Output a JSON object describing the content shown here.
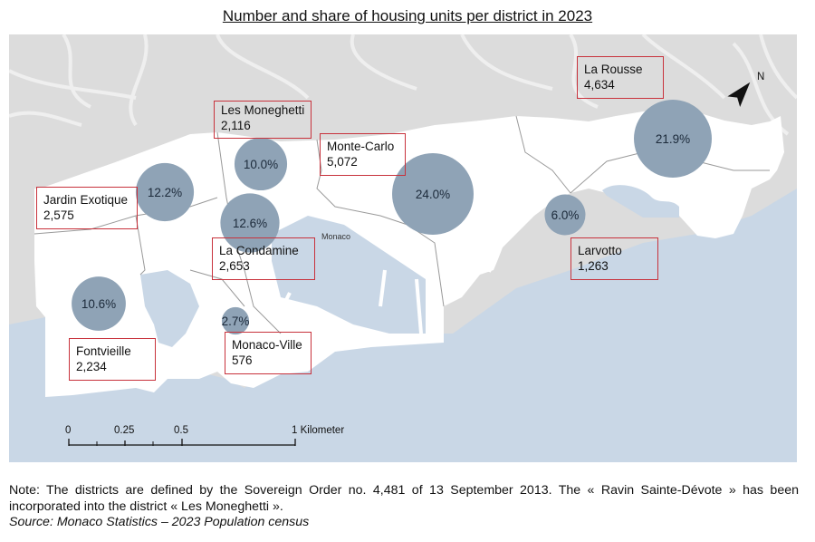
{
  "title": "Number and share of housing units per district in 2023",
  "map_place_label": "Monaco",
  "districts": [
    {
      "id": "la-rousse",
      "name": "La Rousse",
      "units": "4,634",
      "share": "21.9%",
      "share_value": 21.9
    },
    {
      "id": "les-moneghetti",
      "name": "Les Moneghetti",
      "units": "2,116",
      "share": "10.0%",
      "share_value": 10.0
    },
    {
      "id": "monte-carlo",
      "name": "Monte-Carlo",
      "units": "5,072",
      "share": "24.0%",
      "share_value": 24.0
    },
    {
      "id": "jardin-exotique",
      "name": "Jardin Exotique",
      "units": "2,575",
      "share": "12.2%",
      "share_value": 12.2
    },
    {
      "id": "la-condamine",
      "name": "La Condamine",
      "units": "2,653",
      "share": "12.6%",
      "share_value": 12.6
    },
    {
      "id": "larvotto",
      "name": "Larvotto",
      "units": "1,263",
      "share": "6.0%",
      "share_value": 6.0
    },
    {
      "id": "fontvieille",
      "name": "Fontvieille",
      "units": "2,234",
      "share": "10.6%",
      "share_value": 10.6
    },
    {
      "id": "monaco-ville",
      "name": "Monaco-Ville",
      "units": "576",
      "share": "2.7%",
      "share_value": 2.7
    }
  ],
  "scale_bar": {
    "ticks": [
      "0",
      "0.25",
      "0.5",
      "1 Kilometer"
    ]
  },
  "north_arrow_icon": "north-arrow-icon",
  "north_label": "N",
  "note": "Note: The districts are defined by the Sovereign Order no. 4,481 of 13 September 2013. The « Ravin Sainte-Dévote » has been incorporated into the district « Les Moneghetti ».",
  "source": "Source: Monaco Statistics – 2023 Population census",
  "colors": {
    "sea": "#c9d7e6",
    "land": "#ffffff",
    "surround": "#dcdcdc",
    "roads": "#f2f2f2",
    "bubble": "#8fa3b6",
    "box_border": "#c8323c"
  }
}
